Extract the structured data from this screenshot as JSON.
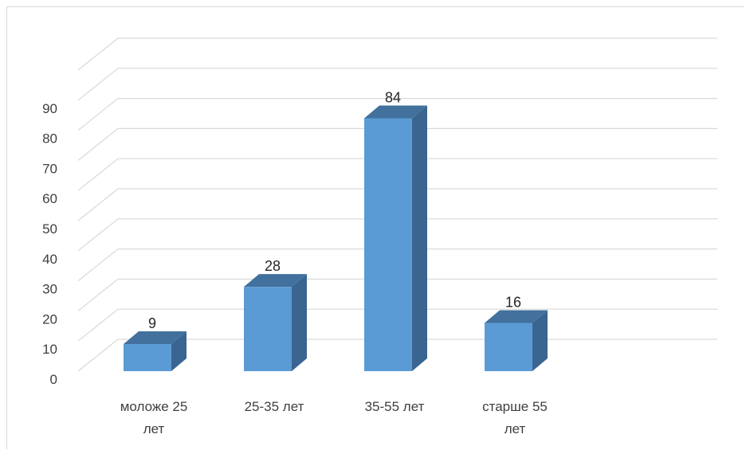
{
  "chart_data": {
    "type": "bar",
    "style": "3d-column",
    "categories": [
      [
        "моложе 25",
        "лет"
      ],
      [
        "25-35 лет"
      ],
      [
        "35-55 лет"
      ],
      [
        "старше 55",
        "лет"
      ]
    ],
    "values": [
      9,
      28,
      84,
      16
    ],
    "data_labels": [
      "9",
      "28",
      "84",
      "16"
    ],
    "y_ticks": [
      "0",
      "10",
      "20",
      "30",
      "40",
      "50",
      "60",
      "70",
      "80",
      "90"
    ],
    "ylim": [
      0,
      100
    ],
    "grid": true,
    "legend": "none",
    "colors": {
      "bar_front": "#5b9bd5",
      "bar_side": "#3a6591",
      "bar_top": "#41719c",
      "grid": "#d9d9d9",
      "text": "#404040"
    }
  }
}
